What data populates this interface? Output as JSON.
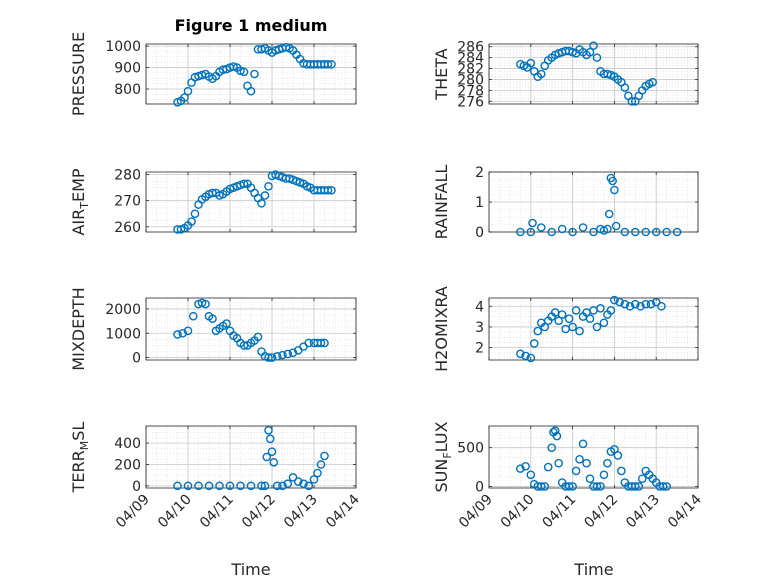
{
  "title": "Figure 1 medium",
  "xlabel": "Time",
  "date_ticks": [
    "04/09",
    "04/10",
    "04/11",
    "04/12",
    "04/13",
    "04/14"
  ],
  "style": {
    "marker_color": "#0072bd",
    "grid_color": "#d9d9d9",
    "axis_color": "#262626"
  },
  "chart_data": [
    {
      "type": "scatter",
      "marker": "circle",
      "ylabel": "PRESSURE",
      "ylim": [
        730,
        1010
      ],
      "yticks": [
        800,
        900,
        1000
      ],
      "grid": true,
      "x": [
        "04/09 18:00",
        "04/09 20:00",
        "04/09 22:00",
        "04/10 00:00",
        "04/10 02:00",
        "04/10 04:00",
        "04/10 06:00",
        "04/10 08:00",
        "04/10 10:00",
        "04/10 12:00",
        "04/10 14:00",
        "04/10 16:00",
        "04/10 18:00",
        "04/10 20:00",
        "04/10 22:00",
        "04/11 00:00",
        "04/11 02:00",
        "04/11 04:00",
        "04/11 06:00",
        "04/11 08:00",
        "04/11 10:00",
        "04/11 12:00",
        "04/11 14:00",
        "04/11 16:00",
        "04/11 18:00",
        "04/11 20:00",
        "04/11 22:00",
        "04/12 00:00",
        "04/12 02:00",
        "04/12 04:00",
        "04/12 06:00",
        "04/12 08:00",
        "04/12 10:00",
        "04/12 12:00",
        "04/12 14:00",
        "04/12 16:00",
        "04/12 18:00",
        "04/12 20:00",
        "04/12 22:00",
        "04/13 00:00",
        "04/13 02:00",
        "04/13 04:00",
        "04/13 06:00",
        "04/13 08:00",
        "04/13 10:00"
      ],
      "y": [
        738,
        745,
        760,
        790,
        830,
        855,
        860,
        865,
        870,
        858,
        848,
        860,
        880,
        890,
        893,
        900,
        905,
        900,
        885,
        880,
        815,
        790,
        870,
        985,
        985,
        990,
        980,
        970,
        980,
        985,
        990,
        995,
        990,
        980,
        960,
        940,
        920,
        915,
        915,
        915,
        915,
        915,
        915,
        915,
        915
      ]
    },
    {
      "type": "scatter",
      "marker": "circle",
      "ylabel": "THETA",
      "ylim": [
        275.5,
        286.5
      ],
      "yticks": [
        276,
        278,
        280,
        282,
        284,
        286
      ],
      "grid": true,
      "x": [
        "04/09 18:00",
        "04/09 20:00",
        "04/09 22:00",
        "04/10 00:00",
        "04/10 02:00",
        "04/10 04:00",
        "04/10 06:00",
        "04/10 08:00",
        "04/10 10:00",
        "04/10 12:00",
        "04/10 14:00",
        "04/10 16:00",
        "04/10 18:00",
        "04/10 20:00",
        "04/10 22:00",
        "04/11 00:00",
        "04/11 02:00",
        "04/11 04:00",
        "04/11 06:00",
        "04/11 08:00",
        "04/11 10:00",
        "04/11 12:00",
        "04/11 14:00",
        "04/11 16:00",
        "04/11 18:00",
        "04/11 20:00",
        "04/11 22:00",
        "04/12 00:00",
        "04/12 02:00",
        "04/12 04:00",
        "04/12 06:00",
        "04/12 08:00",
        "04/12 10:00",
        "04/12 12:00",
        "04/12 14:00",
        "04/12 16:00",
        "04/12 18:00",
        "04/12 20:00",
        "04/12 22:00"
      ],
      "y": [
        282.8,
        282.5,
        282.2,
        283.0,
        281.5,
        280.5,
        281.0,
        282.5,
        283.5,
        284.0,
        284.5,
        284.8,
        285.0,
        285.2,
        285.2,
        285.0,
        284.8,
        285.5,
        285.0,
        284.5,
        285.0,
        286.2,
        284.0,
        281.5,
        281.0,
        281.0,
        280.8,
        280.5,
        280.0,
        279.5,
        278.5,
        277.0,
        276.0,
        276.0,
        277.0,
        278.0,
        278.8,
        279.2,
        279.5
      ]
    },
    {
      "type": "scatter",
      "marker": "circle",
      "ylabel": "AIR_TEMP",
      "ylim": [
        258,
        281
      ],
      "yticks": [
        260,
        270,
        280
      ],
      "grid": true,
      "x": [
        "04/09 18:00",
        "04/09 20:00",
        "04/09 22:00",
        "04/10 00:00",
        "04/10 02:00",
        "04/10 04:00",
        "04/10 06:00",
        "04/10 08:00",
        "04/10 10:00",
        "04/10 12:00",
        "04/10 14:00",
        "04/10 16:00",
        "04/10 18:00",
        "04/10 20:00",
        "04/10 22:00",
        "04/11 00:00",
        "04/11 02:00",
        "04/11 04:00",
        "04/11 06:00",
        "04/11 08:00",
        "04/11 10:00",
        "04/11 12:00",
        "04/11 14:00",
        "04/11 16:00",
        "04/11 18:00",
        "04/11 20:00",
        "04/11 22:00",
        "04/12 00:00",
        "04/12 02:00",
        "04/12 04:00",
        "04/12 06:00",
        "04/12 08:00",
        "04/12 10:00",
        "04/12 12:00",
        "04/12 14:00",
        "04/12 16:00",
        "04/12 18:00",
        "04/12 20:00",
        "04/12 22:00",
        "04/13 00:00",
        "04/13 02:00",
        "04/13 04:00",
        "04/13 06:00",
        "04/13 08:00",
        "04/13 10:00"
      ],
      "y": [
        259.0,
        259.0,
        259.5,
        260.5,
        262.0,
        265.0,
        268.5,
        270.5,
        271.5,
        272.5,
        273.0,
        273.0,
        272.0,
        272.5,
        273.5,
        274.5,
        275.0,
        275.5,
        276.0,
        276.5,
        276.5,
        275.0,
        273.0,
        271.0,
        269.0,
        272.0,
        275.5,
        279.5,
        280.0,
        279.5,
        279.0,
        278.5,
        278.5,
        278.0,
        277.5,
        277.0,
        276.5,
        275.5,
        275.0,
        274.0,
        274.0,
        274.0,
        274.0,
        274.0,
        274.0
      ]
    },
    {
      "type": "scatter",
      "marker": "circle",
      "ylabel": "RAINFALL",
      "ylim": [
        0,
        2
      ],
      "yticks": [
        0,
        1,
        2
      ],
      "grid": true,
      "x": [
        "04/09 18:00",
        "04/10 00:00",
        "04/10 01:00",
        "04/10 06:00",
        "04/10 12:00",
        "04/10 18:00",
        "04/11 00:00",
        "04/11 06:00",
        "04/11 12:00",
        "04/11 16:00",
        "04/11 18:00",
        "04/11 20:00",
        "04/11 21:00",
        "04/11 22:00",
        "04/11 23:00",
        "04/12 00:00",
        "04/12 01:00",
        "04/12 06:00",
        "04/12 12:00",
        "04/12 18:00",
        "04/13 00:00",
        "04/13 06:00",
        "04/13 12:00"
      ],
      "y": [
        0,
        0,
        0.3,
        0.15,
        0,
        0.1,
        0,
        0.15,
        0,
        0.1,
        0.05,
        0.1,
        0.6,
        1.8,
        1.7,
        1.4,
        0.2,
        0,
        0,
        0,
        0,
        0,
        0
      ]
    },
    {
      "type": "scatter",
      "marker": "circle",
      "ylabel": "MIXDEPTH",
      "ylim": [
        -100,
        2450
      ],
      "yticks": [
        0,
        1000,
        2000
      ],
      "grid": true,
      "x": [
        "04/09 18:00",
        "04/09 21:00",
        "04/10 00:00",
        "04/10 03:00",
        "04/10 06:00",
        "04/10 08:00",
        "04/10 10:00",
        "04/10 12:00",
        "04/10 14:00",
        "04/10 16:00",
        "04/10 18:00",
        "04/10 20:00",
        "04/10 22:00",
        "04/11 00:00",
        "04/11 02:00",
        "04/11 04:00",
        "04/11 06:00",
        "04/11 08:00",
        "04/11 10:00",
        "04/11 12:00",
        "04/11 14:00",
        "04/11 16:00",
        "04/11 18:00",
        "04/11 20:00",
        "04/11 22:00",
        "04/12 00:00",
        "04/12 03:00",
        "04/12 06:00",
        "04/12 09:00",
        "04/12 12:00",
        "04/12 15:00",
        "04/12 18:00",
        "04/12 21:00",
        "04/13 00:00",
        "04/13 02:00",
        "04/13 04:00",
        "04/13 06:00"
      ],
      "y": [
        950,
        1000,
        1100,
        1700,
        2200,
        2250,
        2200,
        1700,
        1600,
        1100,
        1200,
        1300,
        1400,
        1100,
        900,
        800,
        600,
        500,
        500,
        600,
        700,
        850,
        250,
        50,
        0,
        0,
        50,
        100,
        150,
        200,
        300,
        450,
        600,
        600,
        600,
        600,
        600
      ]
    },
    {
      "type": "scatter",
      "marker": "circle",
      "ylabel": "H2OMIXRA",
      "ylim": [
        1.4,
        4.4
      ],
      "yticks": [
        2,
        3,
        4
      ],
      "grid": true,
      "x": [
        "04/09 18:00",
        "04/09 21:00",
        "04/10 00:00",
        "04/10 02:00",
        "04/10 04:00",
        "04/10 06:00",
        "04/10 08:00",
        "04/10 10:00",
        "04/10 12:00",
        "04/10 14:00",
        "04/10 16:00",
        "04/10 18:00",
        "04/10 20:00",
        "04/10 22:00",
        "04/11 00:00",
        "04/11 02:00",
        "04/11 04:00",
        "04/11 06:00",
        "04/11 08:00",
        "04/11 10:00",
        "04/11 12:00",
        "04/11 14:00",
        "04/11 16:00",
        "04/11 18:00",
        "04/11 20:00",
        "04/11 22:00",
        "04/12 00:00",
        "04/12 03:00",
        "04/12 06:00",
        "04/12 09:00",
        "04/12 12:00",
        "04/12 15:00",
        "04/12 18:00",
        "04/12 21:00",
        "04/13 00:00",
        "04/13 03:00"
      ],
      "y": [
        1.7,
        1.6,
        1.5,
        2.2,
        2.8,
        3.2,
        3.0,
        3.3,
        3.5,
        3.7,
        3.3,
        3.6,
        2.9,
        3.4,
        3.0,
        3.8,
        2.8,
        3.5,
        3.7,
        3.4,
        3.8,
        3.0,
        3.9,
        3.2,
        3.6,
        3.8,
        4.3,
        4.2,
        4.1,
        4.0,
        4.1,
        4.0,
        4.1,
        4.1,
        4.2,
        4.0
      ]
    },
    {
      "type": "scatter",
      "marker": "circle",
      "ylabel": "TERR_MSL",
      "ylim": [
        -20,
        560
      ],
      "yticks": [
        0,
        200,
        400
      ],
      "grid": true,
      "x": [
        "04/09 18:00",
        "04/10 00:00",
        "04/10 06:00",
        "04/10 12:00",
        "04/10 18:00",
        "04/11 00:00",
        "04/11 06:00",
        "04/11 12:00",
        "04/11 18:00",
        "04/11 20:00",
        "04/11 21:00",
        "04/11 22:00",
        "04/11 23:00",
        "04/12 00:00",
        "04/12 01:00",
        "04/12 03:00",
        "04/12 06:00",
        "04/12 09:00",
        "04/12 12:00",
        "04/12 15:00",
        "04/12 18:00",
        "04/12 21:00",
        "04/13 00:00",
        "04/13 02:00",
        "04/13 04:00",
        "04/13 06:00"
      ],
      "y": [
        0,
        0,
        0,
        0,
        0,
        0,
        0,
        0,
        0,
        0,
        270,
        520,
        440,
        320,
        220,
        0,
        0,
        20,
        80,
        40,
        20,
        0,
        60,
        120,
        200,
        280
      ]
    },
    {
      "type": "scatter",
      "marker": "circle",
      "ylabel": "SUN_FLUX",
      "ylim": [
        -20,
        780
      ],
      "yticks": [
        0,
        500
      ],
      "grid": true,
      "x": [
        "04/09 18:00",
        "04/09 21:00",
        "04/10 00:00",
        "04/10 02:00",
        "04/10 04:00",
        "04/10 06:00",
        "04/10 08:00",
        "04/10 10:00",
        "04/10 12:00",
        "04/10 13:00",
        "04/10 14:00",
        "04/10 15:00",
        "04/10 16:00",
        "04/10 18:00",
        "04/10 20:00",
        "04/10 22:00",
        "04/11 00:00",
        "04/11 02:00",
        "04/11 04:00",
        "04/11 06:00",
        "04/11 08:00",
        "04/11 10:00",
        "04/11 12:00",
        "04/11 14:00",
        "04/11 16:00",
        "04/11 18:00",
        "04/11 20:00",
        "04/11 22:00",
        "04/12 00:00",
        "04/12 02:00",
        "04/12 04:00",
        "04/12 06:00",
        "04/12 08:00",
        "04/12 10:00",
        "04/12 12:00",
        "04/12 14:00",
        "04/12 16:00",
        "04/12 18:00",
        "04/12 20:00",
        "04/12 22:00",
        "04/13 00:00",
        "04/13 02:00",
        "04/13 04:00",
        "04/13 06:00"
      ],
      "y": [
        230,
        260,
        150,
        30,
        0,
        0,
        0,
        250,
        500,
        700,
        720,
        650,
        300,
        50,
        0,
        0,
        0,
        200,
        350,
        550,
        300,
        100,
        0,
        0,
        0,
        150,
        300,
        450,
        480,
        400,
        200,
        50,
        0,
        0,
        0,
        0,
        100,
        200,
        150,
        100,
        50,
        0,
        0,
        0
      ]
    }
  ]
}
